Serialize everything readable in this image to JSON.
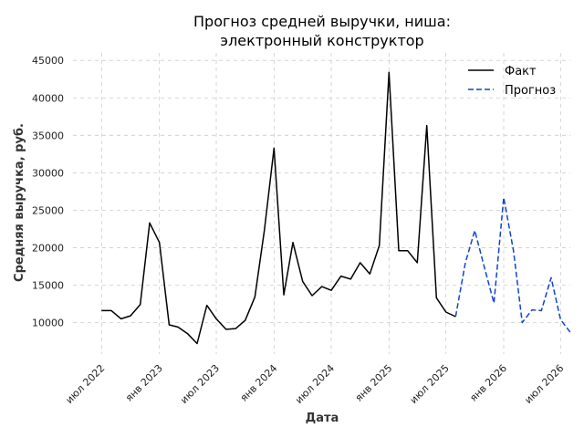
{
  "chart_data": {
    "type": "line",
    "title": [
      "Прогноз средней выручки, ниша:",
      "электронный конструктор"
    ],
    "xlabel": "Дата",
    "ylabel": "Средняя выручка, руб.",
    "ylim": [
      5800,
      46000
    ],
    "xlim": [
      "2022-04-01",
      "2026-08-01"
    ],
    "yticks": [
      10000,
      15000,
      20000,
      25000,
      30000,
      35000,
      40000,
      45000
    ],
    "yticklabels": [
      "10000",
      "15000",
      "20000",
      "25000",
      "30000",
      "35000",
      "40000",
      "45000"
    ],
    "xticks": [
      "2022-07-01",
      "2023-01-01",
      "2023-07-01",
      "2024-01-01",
      "2024-07-01",
      "2025-01-01",
      "2025-07-01",
      "2026-01-01",
      "2026-07-01"
    ],
    "xticklabels": [
      "июл 2022",
      "янв 2023",
      "июл 2023",
      "янв 2024",
      "июл 2024",
      "янв 2025",
      "июл 2025",
      "янв 2026",
      "июл 2026"
    ],
    "grid": true,
    "legend_position": "top-right",
    "series": [
      {
        "name": "Факт",
        "color": "#000000",
        "style": "solid",
        "x": [
          "2022-07-01",
          "2022-08-01",
          "2022-09-01",
          "2022-10-01",
          "2022-11-01",
          "2022-12-01",
          "2023-01-01",
          "2023-02-01",
          "2023-03-01",
          "2023-04-01",
          "2023-05-01",
          "2023-06-01",
          "2023-07-01",
          "2023-08-01",
          "2023-09-01",
          "2023-10-01",
          "2023-11-01",
          "2023-12-01",
          "2024-01-01",
          "2024-02-01",
          "2024-03-01",
          "2024-04-01",
          "2024-05-01",
          "2024-06-01",
          "2024-07-01",
          "2024-08-01",
          "2024-09-01",
          "2024-10-01",
          "2024-11-01",
          "2024-12-01",
          "2025-01-01",
          "2025-02-01",
          "2025-03-01",
          "2025-04-01",
          "2025-05-01",
          "2025-06-01",
          "2025-07-01",
          "2025-08-01"
        ],
        "values": [
          11600,
          11600,
          10500,
          10900,
          12400,
          23300,
          20700,
          9700,
          9400,
          8500,
          7200,
          12300,
          10500,
          9100,
          9200,
          10300,
          13400,
          22300,
          33300,
          13700,
          20700,
          15500,
          13600,
          14800,
          14300,
          16200,
          15800,
          18000,
          16500,
          20300,
          43400,
          19600,
          19600,
          18000,
          36300,
          13300,
          11400,
          10800
        ]
      },
      {
        "name": "Прогноз",
        "color": "#1144cc",
        "style": "dashed",
        "x": [
          "2025-08-01",
          "2025-09-01",
          "2025-10-01",
          "2025-11-01",
          "2025-12-01",
          "2026-01-01",
          "2026-02-01",
          "2026-03-01",
          "2026-04-01",
          "2026-05-01",
          "2026-06-01",
          "2026-07-01",
          "2026-08-01"
        ],
        "values": [
          10800,
          18000,
          22300,
          17300,
          12600,
          26700,
          19600,
          10000,
          11700,
          11600,
          16000,
          10400,
          8700
        ]
      }
    ]
  }
}
